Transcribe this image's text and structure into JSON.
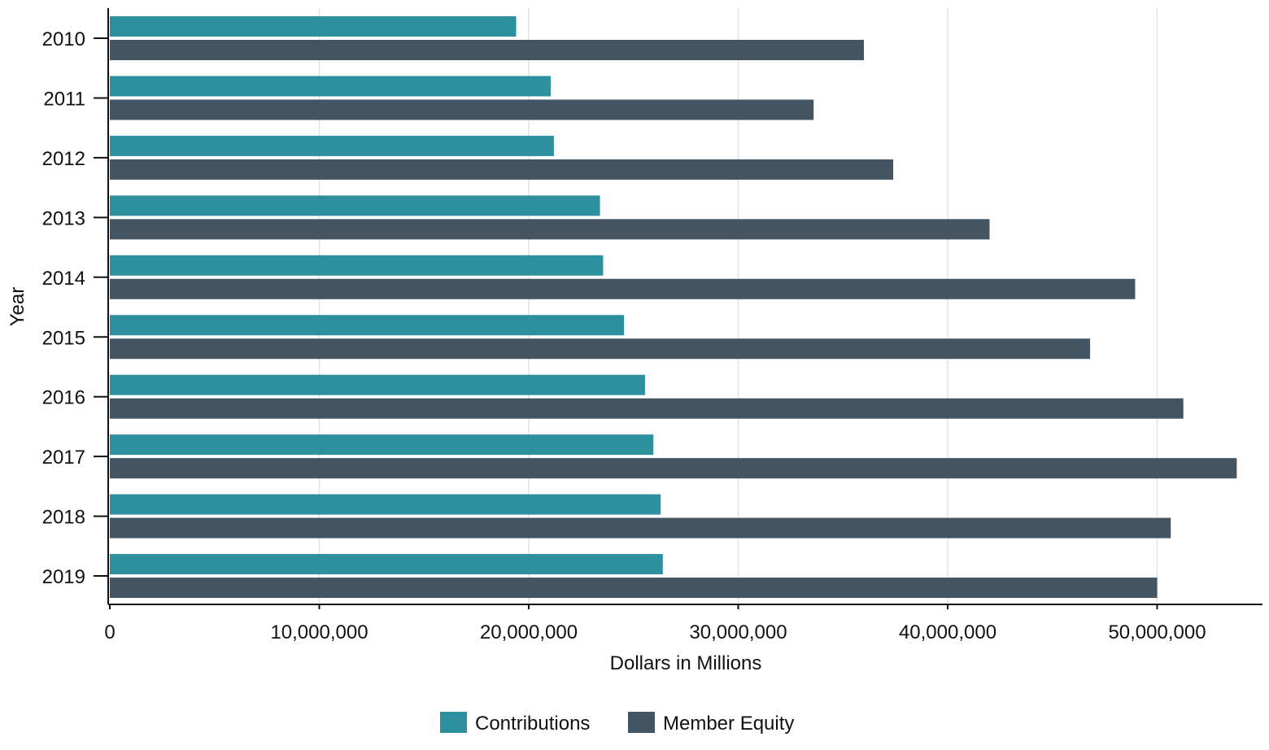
{
  "chart_data": {
    "type": "bar",
    "orientation": "horizontal",
    "categories": [
      "2010",
      "2011",
      "2012",
      "2013",
      "2014",
      "2015",
      "2016",
      "2017",
      "2018",
      "2019"
    ],
    "series": [
      {
        "name": "Contributions",
        "color": "#2e8f9e",
        "values": [
          19400000,
          21050000,
          21200000,
          23400000,
          23550000,
          24550000,
          25550000,
          25950000,
          26300000,
          26400000
        ]
      },
      {
        "name": "Member Equity",
        "color": "#435563",
        "values": [
          36000000,
          33600000,
          37400000,
          42000000,
          48950000,
          46800000,
          51250000,
          53800000,
          50650000,
          50000000
        ]
      }
    ],
    "xlabel": "Dollars in Millions",
    "ylabel": "Year",
    "xlim": [
      0,
      55000000
    ],
    "xticks": [
      0,
      10000000,
      20000000,
      30000000,
      40000000,
      50000000
    ],
    "xtick_labels": [
      "0",
      "10,000,000",
      "20,000,000",
      "30,000,000",
      "40,000,000",
      "50,000,000"
    ],
    "grid": "vertical",
    "legend_position": "bottom-center"
  }
}
